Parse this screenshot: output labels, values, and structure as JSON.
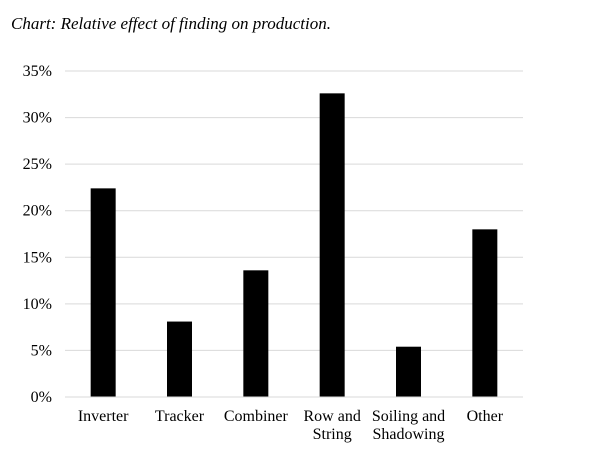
{
  "chart_data": {
    "type": "bar",
    "title": "Chart: Relative effect of finding on production.",
    "categories": [
      "Inverter",
      "Tracker",
      "Combiner",
      "Row and String",
      "Soiling and Shadowing",
      "Other"
    ],
    "category_label_lines": [
      [
        "Inverter"
      ],
      [
        "Tracker"
      ],
      [
        "Combiner"
      ],
      [
        "Row and",
        "String"
      ],
      [
        "Soiling and",
        "Shadowing"
      ],
      [
        "Other"
      ]
    ],
    "values": [
      22.4,
      8.1,
      13.6,
      32.6,
      5.4,
      18.0
    ],
    "value_unit": "%",
    "ylim": [
      0,
      35
    ],
    "y_ticks": [
      "0%",
      "5%",
      "10%",
      "15%",
      "20%",
      "25%",
      "30%",
      "35%"
    ],
    "xlabel": "",
    "ylabel": "",
    "grid": true,
    "bar_color": "#000000",
    "grid_color": "#d9d9d9"
  }
}
